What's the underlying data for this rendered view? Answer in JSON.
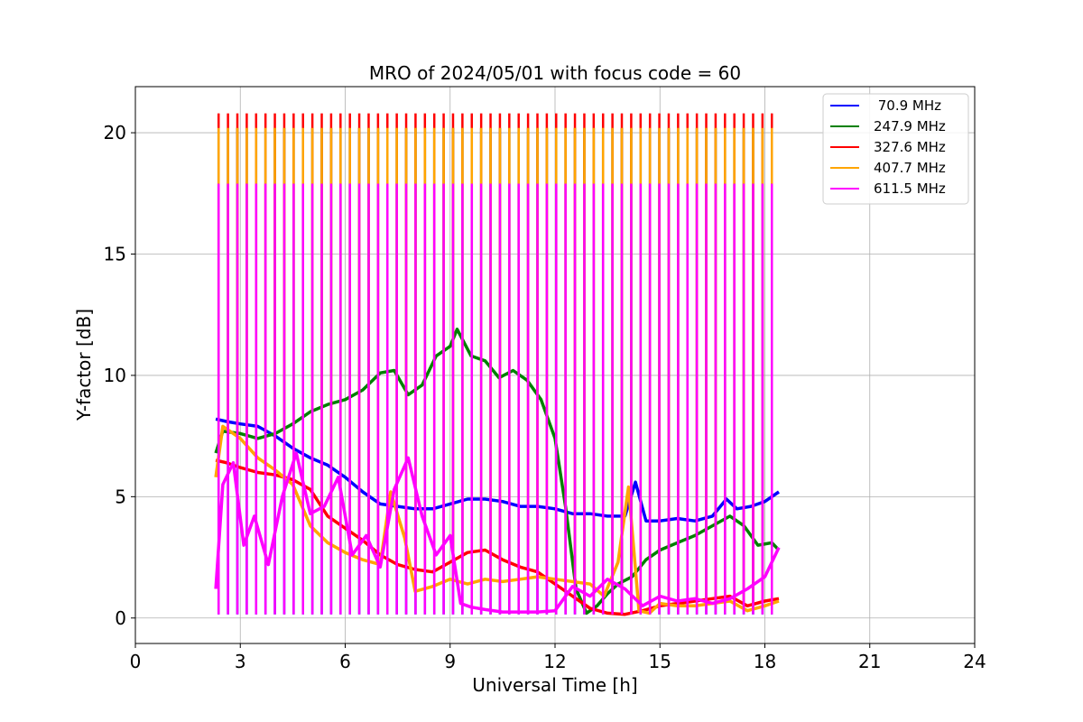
{
  "chart_data": {
    "type": "line",
    "title": "MRO of 2024/05/01 with focus code = 60",
    "xlabel": "Universal Time [h]",
    "ylabel": "Y-factor [dB]",
    "xlim": [
      0,
      24
    ],
    "ylim": [
      -1.05,
      21.9
    ],
    "xticks": [
      0,
      3,
      6,
      9,
      12,
      15,
      18,
      21,
      24
    ],
    "yticks": [
      0,
      5,
      10,
      15,
      20
    ],
    "grid": true,
    "legend_position": "top-right",
    "calibration_spikes": {
      "t_start": 2.38,
      "t_end": 18.2,
      "count": 60,
      "peak_values": {
        "70.9 MHz": 3.3,
        "247.9 MHz": 20.2,
        "327.6 MHz": 20.8,
        "407.7 MHz": 20.2,
        "611.5 MHz": 17.9
      },
      "dip_values": {
        "70.9 MHz": 0.15,
        "611.5 MHz": 0.15
      }
    },
    "series": [
      {
        "name": " 70.9 MHz",
        "color": "#0000ff",
        "x": [
          2.3,
          2.6,
          3.0,
          3.5,
          4.0,
          4.5,
          5.0,
          5.5,
          6.0,
          6.5,
          7.0,
          7.5,
          8.0,
          8.5,
          9.0,
          9.5,
          10.0,
          10.5,
          11.0,
          11.5,
          12.0,
          12.5,
          13.0,
          13.5,
          14.0,
          14.3,
          14.6,
          15.0,
          15.5,
          16.0,
          16.5,
          16.9,
          17.2,
          17.6,
          18.0,
          18.4
        ],
        "y": [
          8.2,
          8.1,
          8.0,
          7.9,
          7.5,
          7.0,
          6.6,
          6.3,
          5.8,
          5.2,
          4.7,
          4.6,
          4.5,
          4.5,
          4.7,
          4.9,
          4.9,
          4.8,
          4.6,
          4.6,
          4.5,
          4.3,
          4.3,
          4.2,
          4.2,
          5.6,
          4.0,
          4.0,
          4.1,
          4.0,
          4.2,
          4.9,
          4.5,
          4.6,
          4.8,
          5.2
        ]
      },
      {
        "name": "247.9 MHz",
        "color": "#008000",
        "x": [
          2.3,
          2.5,
          3.0,
          3.5,
          4.0,
          4.5,
          5.0,
          5.5,
          6.0,
          6.5,
          7.0,
          7.4,
          7.8,
          8.2,
          8.6,
          9.0,
          9.2,
          9.6,
          10.0,
          10.4,
          10.8,
          11.2,
          11.6,
          12.0,
          12.3,
          12.6,
          12.9,
          13.2,
          13.5,
          13.8,
          14.2,
          14.6,
          15.0,
          15.5,
          16.0,
          16.5,
          17.0,
          17.4,
          17.8,
          18.2,
          18.4
        ],
        "y": [
          6.8,
          7.7,
          7.6,
          7.4,
          7.6,
          8.0,
          8.5,
          8.8,
          9.0,
          9.4,
          10.1,
          10.2,
          9.2,
          9.6,
          10.8,
          11.2,
          11.9,
          10.8,
          10.6,
          9.9,
          10.2,
          9.8,
          9.0,
          7.4,
          4.6,
          1.2,
          0.2,
          0.5,
          1.0,
          1.4,
          1.7,
          2.4,
          2.8,
          3.1,
          3.4,
          3.8,
          4.2,
          3.8,
          3.0,
          3.1,
          2.8
        ]
      },
      {
        "name": "327.6 MHz",
        "color": "#ff0000",
        "x": [
          2.3,
          2.6,
          3.0,
          3.5,
          4.0,
          4.5,
          5.0,
          5.5,
          6.0,
          6.5,
          7.0,
          7.5,
          8.0,
          8.5,
          9.0,
          9.5,
          10.0,
          10.5,
          11.0,
          11.5,
          12.0,
          12.5,
          13.0,
          13.5,
          14.0,
          14.5,
          15.0,
          15.5,
          16.0,
          16.5,
          17.0,
          17.5,
          18.0,
          18.4
        ],
        "y": [
          6.5,
          6.4,
          6.2,
          6.0,
          5.9,
          5.7,
          5.3,
          4.2,
          3.7,
          3.2,
          2.6,
          2.2,
          2.0,
          1.9,
          2.3,
          2.7,
          2.8,
          2.4,
          2.1,
          1.9,
          1.4,
          0.9,
          0.4,
          0.2,
          0.15,
          0.3,
          0.5,
          0.6,
          0.7,
          0.8,
          0.9,
          0.5,
          0.7,
          0.8
        ]
      },
      {
        "name": "407.7 MHz",
        "color": "#ffa500",
        "x": [
          2.3,
          2.5,
          3.0,
          3.5,
          4.0,
          4.5,
          5.0,
          5.5,
          6.0,
          6.5,
          7.0,
          7.3,
          7.7,
          8.0,
          8.5,
          9.0,
          9.5,
          10.0,
          10.5,
          11.0,
          11.5,
          12.0,
          12.5,
          13.0,
          13.4,
          13.8,
          14.1,
          14.4,
          14.7,
          15.0,
          15.5,
          16.0,
          16.5,
          17.0,
          17.5,
          18.0,
          18.4
        ],
        "y": [
          5.8,
          7.9,
          7.4,
          6.6,
          6.1,
          5.5,
          3.8,
          3.1,
          2.7,
          2.4,
          2.2,
          5.2,
          3.3,
          1.1,
          1.3,
          1.6,
          1.4,
          1.6,
          1.5,
          1.6,
          1.7,
          1.6,
          1.5,
          1.4,
          0.9,
          2.3,
          5.4,
          0.3,
          0.2,
          0.6,
          0.5,
          0.5,
          0.6,
          0.7,
          0.3,
          0.5,
          0.7
        ]
      },
      {
        "name": "611.5 MHz",
        "color": "#ff00ff",
        "x": [
          2.3,
          2.5,
          2.8,
          3.1,
          3.4,
          3.8,
          4.2,
          4.6,
          5.0,
          5.4,
          5.8,
          6.2,
          6.6,
          7.0,
          7.4,
          7.8,
          8.2,
          8.6,
          9.0,
          9.3,
          9.6,
          10.0,
          10.5,
          11.0,
          11.5,
          12.0,
          12.5,
          13.0,
          13.5,
          14.0,
          14.5,
          15.0,
          15.5,
          16.0,
          16.5,
          17.0,
          17.5,
          18.0,
          18.4
        ],
        "y": [
          1.2,
          5.5,
          6.4,
          3.0,
          4.2,
          2.2,
          5.0,
          6.8,
          4.3,
          4.6,
          5.8,
          2.6,
          3.4,
          2.1,
          5.3,
          6.6,
          4.2,
          2.6,
          3.4,
          0.6,
          0.45,
          0.35,
          0.25,
          0.25,
          0.25,
          0.3,
          1.3,
          0.9,
          1.6,
          1.2,
          0.5,
          0.9,
          0.7,
          0.8,
          0.6,
          0.8,
          1.2,
          1.7,
          2.9
        ]
      }
    ]
  }
}
